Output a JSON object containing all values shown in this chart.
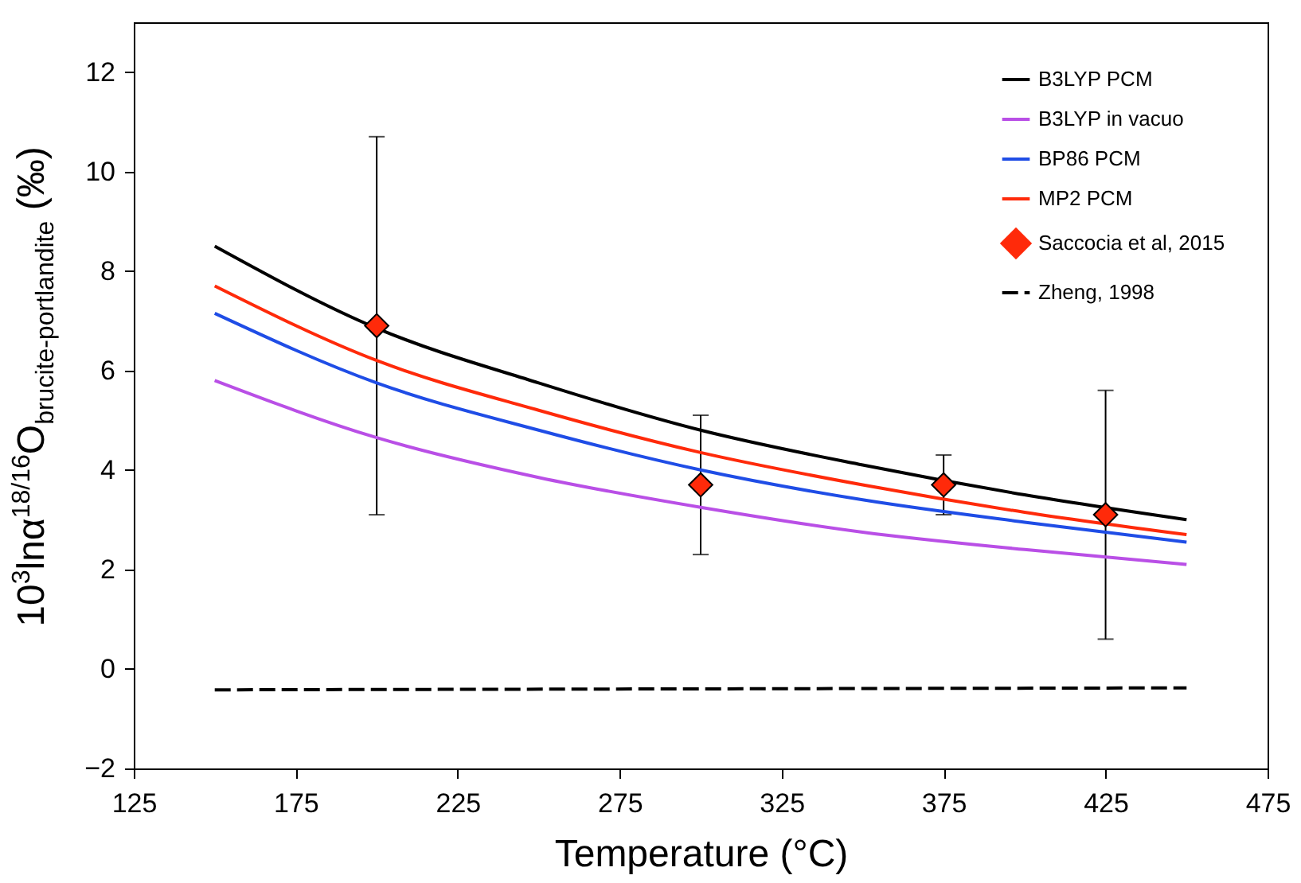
{
  "chart_data": {
    "type": "line",
    "xlabel": "Temperature (°C)",
    "ylabel": "10$^{3}$lnα$^{18/16}$O$_{brucite-portlandite}$ (‰)",
    "x": [
      150,
      200,
      250,
      300,
      350,
      400,
      450
    ],
    "series": [
      {
        "name": "B3LYP PCM",
        "color": "#000000",
        "values": [
          8.5,
          6.85,
          5.75,
          4.8,
          4.1,
          3.5,
          3.0
        ]
      },
      {
        "name": "B3LYP in vacuo",
        "color": "#b94fe6",
        "values": [
          5.8,
          4.65,
          3.85,
          3.25,
          2.75,
          2.4,
          2.1
        ]
      },
      {
        "name": "BP86 PCM",
        "color": "#1f4de6",
        "values": [
          7.15,
          5.75,
          4.8,
          4.0,
          3.4,
          2.95,
          2.55
        ]
      },
      {
        "name": "MP2 PCM",
        "color": "#ff2a0a",
        "values": [
          7.7,
          6.2,
          5.2,
          4.35,
          3.7,
          3.15,
          2.7
        ]
      },
      {
        "name": "Saccocia et al, 2015",
        "type": "scatter",
        "marker": "diamond",
        "color": "#ff2a0a",
        "x": [
          200,
          300,
          375,
          425
        ],
        "values": [
          6.9,
          3.7,
          3.7,
          3.1
        ],
        "errors": [
          [
            3.1,
            10.7
          ],
          [
            2.3,
            5.1
          ],
          [
            3.1,
            4.3
          ],
          [
            0.6,
            5.6
          ]
        ]
      },
      {
        "name": "Zheng, 1998",
        "color": "#000000",
        "line_style": "dashed",
        "x": [
          150,
          450
        ],
        "values": [
          -0.42,
          -0.38
        ]
      }
    ],
    "xlim": [
      125,
      475
    ],
    "xticks": [
      125,
      175,
      225,
      275,
      325,
      375,
      425,
      475
    ],
    "ylim": [
      -2,
      13
    ],
    "yticks": [
      -2,
      0,
      2,
      4,
      6,
      8,
      10,
      12
    ],
    "grid": false,
    "legend": "top right"
  }
}
